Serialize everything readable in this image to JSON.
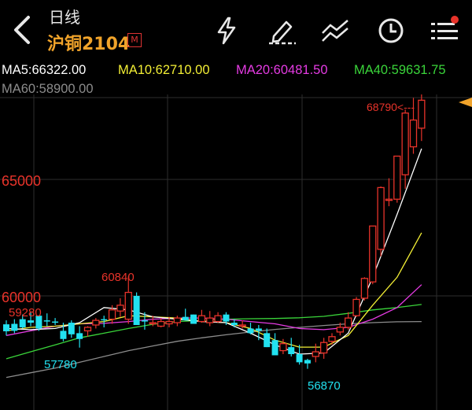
{
  "header": {
    "period": "日线",
    "contract": "沪铜2104",
    "badge": "M",
    "icons": [
      "back-icon",
      "lightning-icon",
      "draw-pen-icon",
      "compare-lines-icon",
      "clock-icon",
      "menu-list-icon"
    ]
  },
  "ma": {
    "ma5": "MA5:66322.00",
    "ma10": "MA10:62710.00",
    "ma20": "MA20:60481.50",
    "ma40": "MA40:59631.75",
    "ma60": "MA60:58900.00"
  },
  "colors": {
    "background": "#000000",
    "up": "#e8332a",
    "down": "#22e1f0",
    "ma5": "#ffffff",
    "ma10": "#f3ef35",
    "ma20": "#e53be3",
    "ma40": "#3ad53a",
    "ma60": "#8c8c8c",
    "accent": "#f0a32a"
  },
  "chart_data": {
    "type": "candlestick",
    "y_ticks": [
      "65000",
      "60000"
    ],
    "y_tick_values": [
      65000,
      60000
    ],
    "high_label": "68790<---",
    "high_value": 68790,
    "point_labels": [
      {
        "text": "60840",
        "value": 60840
      },
      {
        "text": "59280",
        "value": 59280
      },
      {
        "text": "57780",
        "value": 57780
      },
      {
        "text": "56870",
        "value": 56870
      }
    ],
    "ylim": [
      56420,
      68950
    ]
  }
}
